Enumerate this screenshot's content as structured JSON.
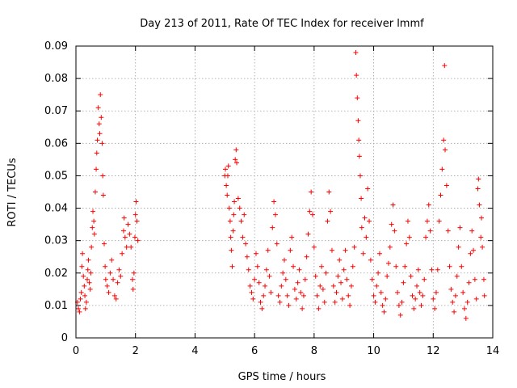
{
  "chart_data": {
    "type": "scatter",
    "title": "Day 213 of 2011, Rate Of TEC Index for receiver lmmf",
    "xlabel": "GPS time / hours",
    "ylabel": "ROTI / TECUs",
    "xlim": [
      0,
      14
    ],
    "ylim": [
      0,
      0.09
    ],
    "xticks": [
      0,
      2,
      4,
      6,
      8,
      10,
      12,
      14
    ],
    "xtick_labels": [
      "0",
      "2",
      "4",
      "6",
      "8",
      "10",
      "12",
      "14"
    ],
    "yticks": [
      0,
      0.01,
      0.02,
      0.03,
      0.04,
      0.05,
      0.06,
      0.07,
      0.08,
      0.09
    ],
    "ytick_labels": [
      "0",
      "0.01",
      "0.02",
      "0.03",
      "0.04",
      "0.05",
      "0.06",
      "0.07",
      "0.08",
      "0.09"
    ],
    "grid": true,
    "marker": "plus",
    "color": "#ff0000",
    "series": [
      {
        "name": "ROTI",
        "points": [
          [
            0.05,
            0.011
          ],
          [
            0.08,
            0.009
          ],
          [
            0.12,
            0.008
          ],
          [
            0.15,
            0.012
          ],
          [
            0.18,
            0.014
          ],
          [
            0.2,
            0.022
          ],
          [
            0.22,
            0.026
          ],
          [
            0.25,
            0.019
          ],
          [
            0.28,
            0.016
          ],
          [
            0.3,
            0.013
          ],
          [
            0.32,
            0.009
          ],
          [
            0.35,
            0.011
          ],
          [
            0.38,
            0.018
          ],
          [
            0.4,
            0.021
          ],
          [
            0.42,
            0.024
          ],
          [
            0.45,
            0.017
          ],
          [
            0.48,
            0.015
          ],
          [
            0.5,
            0.02
          ],
          [
            0.52,
            0.028
          ],
          [
            0.55,
            0.034
          ],
          [
            0.57,
            0.039
          ],
          [
            0.6,
            0.036
          ],
          [
            0.62,
            0.032
          ],
          [
            0.65,
            0.045
          ],
          [
            0.68,
            0.052
          ],
          [
            0.7,
            0.057
          ],
          [
            0.72,
            0.061
          ],
          [
            0.75,
            0.071
          ],
          [
            0.78,
            0.066
          ],
          [
            0.8,
            0.063
          ],
          [
            0.82,
            0.075
          ],
          [
            0.85,
            0.068
          ],
          [
            0.88,
            0.06
          ],
          [
            0.9,
            0.05
          ],
          [
            0.92,
            0.044
          ],
          [
            0.95,
            0.029
          ],
          [
            0.98,
            0.022
          ],
          [
            1.0,
            0.018
          ],
          [
            1.05,
            0.016
          ],
          [
            1.1,
            0.014
          ],
          [
            1.15,
            0.02
          ],
          [
            1.2,
            0.024
          ],
          [
            1.25,
            0.018
          ],
          [
            1.3,
            0.013
          ],
          [
            1.35,
            0.012
          ],
          [
            1.4,
            0.017
          ],
          [
            1.45,
            0.021
          ],
          [
            1.5,
            0.019
          ],
          [
            1.55,
            0.026
          ],
          [
            1.6,
            0.033
          ],
          [
            1.62,
            0.037
          ],
          [
            1.65,
            0.031
          ],
          [
            1.7,
            0.028
          ],
          [
            1.75,
            0.035
          ],
          [
            1.8,
            0.032
          ],
          [
            1.85,
            0.028
          ],
          [
            1.9,
            0.018
          ],
          [
            1.92,
            0.015
          ],
          [
            1.95,
            0.02
          ],
          [
            1.98,
            0.031
          ],
          [
            2.0,
            0.038
          ],
          [
            2.02,
            0.042
          ],
          [
            2.05,
            0.036
          ],
          [
            2.08,
            0.03
          ],
          [
            5.0,
            0.05
          ],
          [
            5.02,
            0.052
          ],
          [
            5.05,
            0.047
          ],
          [
            5.08,
            0.044
          ],
          [
            5.1,
            0.05
          ],
          [
            5.12,
            0.053
          ],
          [
            5.15,
            0.04
          ],
          [
            5.18,
            0.036
          ],
          [
            5.2,
            0.031
          ],
          [
            5.22,
            0.027
          ],
          [
            5.25,
            0.022
          ],
          [
            5.28,
            0.033
          ],
          [
            5.3,
            0.038
          ],
          [
            5.32,
            0.042
          ],
          [
            5.35,
            0.055
          ],
          [
            5.38,
            0.058
          ],
          [
            5.4,
            0.054
          ],
          [
            5.45,
            0.043
          ],
          [
            5.5,
            0.04
          ],
          [
            5.55,
            0.036
          ],
          [
            5.6,
            0.031
          ],
          [
            5.65,
            0.038
          ],
          [
            5.7,
            0.029
          ],
          [
            5.75,
            0.025
          ],
          [
            5.8,
            0.021
          ],
          [
            5.85,
            0.016
          ],
          [
            5.9,
            0.014
          ],
          [
            5.95,
            0.012
          ],
          [
            6.0,
            0.018
          ],
          [
            6.05,
            0.026
          ],
          [
            6.1,
            0.022
          ],
          [
            6.15,
            0.017
          ],
          [
            6.2,
            0.011
          ],
          [
            6.25,
            0.009
          ],
          [
            6.3,
            0.013
          ],
          [
            6.35,
            0.016
          ],
          [
            6.4,
            0.021
          ],
          [
            6.45,
            0.027
          ],
          [
            6.5,
            0.019
          ],
          [
            6.55,
            0.014
          ],
          [
            6.6,
            0.034
          ],
          [
            6.65,
            0.042
          ],
          [
            6.7,
            0.038
          ],
          [
            6.75,
            0.029
          ],
          [
            6.8,
            0.013
          ],
          [
            6.85,
            0.011
          ],
          [
            6.9,
            0.016
          ],
          [
            6.95,
            0.02
          ],
          [
            7.0,
            0.024
          ],
          [
            7.05,
            0.018
          ],
          [
            7.1,
            0.013
          ],
          [
            7.15,
            0.01
          ],
          [
            7.2,
            0.027
          ],
          [
            7.25,
            0.031
          ],
          [
            7.3,
            0.022
          ],
          [
            7.35,
            0.015
          ],
          [
            7.4,
            0.012
          ],
          [
            7.45,
            0.017
          ],
          [
            7.5,
            0.021
          ],
          [
            7.55,
            0.014
          ],
          [
            7.6,
            0.009
          ],
          [
            7.65,
            0.013
          ],
          [
            7.7,
            0.018
          ],
          [
            7.75,
            0.025
          ],
          [
            7.8,
            0.032
          ],
          [
            7.85,
            0.039
          ],
          [
            7.9,
            0.045
          ],
          [
            7.95,
            0.038
          ],
          [
            8.0,
            0.028
          ],
          [
            8.05,
            0.019
          ],
          [
            8.1,
            0.013
          ],
          [
            8.15,
            0.009
          ],
          [
            8.2,
            0.016
          ],
          [
            8.25,
            0.022
          ],
          [
            8.3,
            0.015
          ],
          [
            8.35,
            0.011
          ],
          [
            8.4,
            0.02
          ],
          [
            8.45,
            0.036
          ],
          [
            8.5,
            0.045
          ],
          [
            8.55,
            0.039
          ],
          [
            8.6,
            0.027
          ],
          [
            8.65,
            0.016
          ],
          [
            8.7,
            0.011
          ],
          [
            8.75,
            0.014
          ],
          [
            8.8,
            0.019
          ],
          [
            8.85,
            0.024
          ],
          [
            8.9,
            0.017
          ],
          [
            8.95,
            0.012
          ],
          [
            9.0,
            0.021
          ],
          [
            9.05,
            0.027
          ],
          [
            9.1,
            0.018
          ],
          [
            9.15,
            0.013
          ],
          [
            9.2,
            0.01
          ],
          [
            9.25,
            0.016
          ],
          [
            9.3,
            0.022
          ],
          [
            9.35,
            0.028
          ],
          [
            9.4,
            0.088
          ],
          [
            9.42,
            0.081
          ],
          [
            9.45,
            0.074
          ],
          [
            9.48,
            0.067
          ],
          [
            9.5,
            0.061
          ],
          [
            9.52,
            0.056
          ],
          [
            9.55,
            0.05
          ],
          [
            9.58,
            0.043
          ],
          [
            9.6,
            0.034
          ],
          [
            9.65,
            0.026
          ],
          [
            9.7,
            0.037
          ],
          [
            9.75,
            0.031
          ],
          [
            9.8,
            0.046
          ],
          [
            9.85,
            0.036
          ],
          [
            9.9,
            0.024
          ],
          [
            9.95,
            0.018
          ],
          [
            10.0,
            0.013
          ],
          [
            10.05,
            0.011
          ],
          [
            10.1,
            0.016
          ],
          [
            10.15,
            0.02
          ],
          [
            10.2,
            0.026
          ],
          [
            10.25,
            0.014
          ],
          [
            10.3,
            0.01
          ],
          [
            10.35,
            0.008
          ],
          [
            10.4,
            0.012
          ],
          [
            10.45,
            0.019
          ],
          [
            10.5,
            0.023
          ],
          [
            10.55,
            0.028
          ],
          [
            10.6,
            0.035
          ],
          [
            10.65,
            0.041
          ],
          [
            10.7,
            0.033
          ],
          [
            10.75,
            0.022
          ],
          [
            10.8,
            0.014
          ],
          [
            10.85,
            0.01
          ],
          [
            10.9,
            0.007
          ],
          [
            10.95,
            0.011
          ],
          [
            11.0,
            0.017
          ],
          [
            11.05,
            0.022
          ],
          [
            11.1,
            0.029
          ],
          [
            11.15,
            0.036
          ],
          [
            11.2,
            0.031
          ],
          [
            11.25,
            0.019
          ],
          [
            11.3,
            0.013
          ],
          [
            11.35,
            0.009
          ],
          [
            11.4,
            0.012
          ],
          [
            11.45,
            0.016
          ],
          [
            11.5,
            0.021
          ],
          [
            11.55,
            0.014
          ],
          [
            11.6,
            0.01
          ],
          [
            11.65,
            0.013
          ],
          [
            11.7,
            0.018
          ],
          [
            11.75,
            0.031
          ],
          [
            11.8,
            0.036
          ],
          [
            11.85,
            0.041
          ],
          [
            11.9,
            0.033
          ],
          [
            11.95,
            0.021
          ],
          [
            12.0,
            0.012
          ],
          [
            12.05,
            0.009
          ],
          [
            12.1,
            0.014
          ],
          [
            12.15,
            0.021
          ],
          [
            12.2,
            0.036
          ],
          [
            12.25,
            0.044
          ],
          [
            12.3,
            0.052
          ],
          [
            12.35,
            0.061
          ],
          [
            12.38,
            0.084
          ],
          [
            12.4,
            0.058
          ],
          [
            12.45,
            0.047
          ],
          [
            12.5,
            0.033
          ],
          [
            12.55,
            0.022
          ],
          [
            12.6,
            0.015
          ],
          [
            12.65,
            0.011
          ],
          [
            12.7,
            0.008
          ],
          [
            12.75,
            0.013
          ],
          [
            12.8,
            0.019
          ],
          [
            12.85,
            0.028
          ],
          [
            12.9,
            0.034
          ],
          [
            12.95,
            0.022
          ],
          [
            13.0,
            0.014
          ],
          [
            13.05,
            0.009
          ],
          [
            13.1,
            0.006
          ],
          [
            13.15,
            0.011
          ],
          [
            13.2,
            0.017
          ],
          [
            13.25,
            0.026
          ],
          [
            13.3,
            0.033
          ],
          [
            13.35,
            0.027
          ],
          [
            13.4,
            0.018
          ],
          [
            13.45,
            0.012
          ],
          [
            13.5,
            0.046
          ],
          [
            13.52,
            0.049
          ],
          [
            13.55,
            0.041
          ],
          [
            13.6,
            0.031
          ],
          [
            13.62,
            0.037
          ],
          [
            13.65,
            0.028
          ],
          [
            13.7,
            0.018
          ],
          [
            13.72,
            0.013
          ]
        ]
      }
    ]
  }
}
